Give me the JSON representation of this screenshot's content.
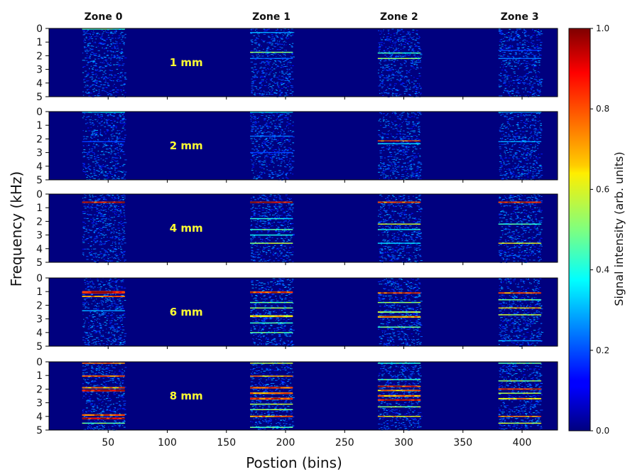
{
  "chart_data": {
    "type": "heatmap",
    "xlabel": "Postion (bins)",
    "ylabel": "Frequency (kHz)",
    "xlim": [
      0,
      430
    ],
    "ylim": [
      0,
      5
    ],
    "y_inverted": true,
    "x_ticks": [
      50,
      100,
      150,
      200,
      250,
      300,
      350,
      400
    ],
    "y_ticks": [
      0,
      1,
      2,
      3,
      4,
      5
    ],
    "zones": [
      {
        "label": "Zone 0",
        "center": 46,
        "range": [
          28,
          64
        ]
      },
      {
        "label": "Zone 1",
        "center": 188,
        "range": [
          170,
          206
        ]
      },
      {
        "label": "Zone 2",
        "center": 296,
        "range": [
          278,
          314
        ]
      },
      {
        "label": "Zone 3",
        "center": 398,
        "range": [
          380,
          416
        ]
      }
    ],
    "colorbar": {
      "label": "Signal intensity (arb. units)",
      "range": [
        0,
        1
      ],
      "ticks": [
        "0.0",
        "0.2",
        "0.4",
        "0.6",
        "0.8",
        "1.0"
      ],
      "colormap": "jet"
    },
    "panels": [
      {
        "label": "1 mm",
        "zones": [
          [
            {
              "f": 0.05,
              "i": 0.45,
              "w": 0.06
            }
          ],
          [
            {
              "f": 1.75,
              "i": 0.55,
              "w": 0.08
            },
            {
              "f": 0.3,
              "i": 0.3,
              "w": 0.05
            },
            {
              "f": 2.2,
              "i": 0.25,
              "w": 0.05
            }
          ],
          [
            {
              "f": 1.8,
              "i": 0.45,
              "w": 0.07
            },
            {
              "f": 2.2,
              "i": 0.55,
              "w": 0.08
            }
          ],
          [
            {
              "f": 2.2,
              "i": 0.25,
              "w": 0.05
            },
            {
              "f": 1.6,
              "i": 0.2,
              "w": 0.05
            }
          ]
        ]
      },
      {
        "label": "2 mm",
        "zones": [
          [
            {
              "f": 0.05,
              "i": 0.35,
              "w": 0.06
            },
            {
              "f": 2.2,
              "i": 0.2,
              "w": 0.05
            }
          ],
          [
            {
              "f": 0.05,
              "i": 0.35,
              "w": 0.06
            },
            {
              "f": 1.8,
              "i": 0.25,
              "w": 0.05
            },
            {
              "f": 3.0,
              "i": 0.2,
              "w": 0.05
            }
          ],
          [
            {
              "f": 2.15,
              "i": 0.85,
              "w": 0.07
            },
            {
              "f": 2.35,
              "i": 0.35,
              "w": 0.05
            }
          ],
          [
            {
              "f": 0.05,
              "i": 0.3,
              "w": 0.06
            },
            {
              "f": 2.2,
              "i": 0.3,
              "w": 0.05
            }
          ]
        ]
      },
      {
        "label": "4 mm",
        "zones": [
          [
            {
              "f": 0.6,
              "i": 0.95,
              "w": 0.1
            }
          ],
          [
            {
              "f": 0.6,
              "i": 0.95,
              "w": 0.1
            },
            {
              "f": 1.8,
              "i": 0.4,
              "w": 0.05
            },
            {
              "f": 2.6,
              "i": 0.5,
              "w": 0.07
            },
            {
              "f": 3.0,
              "i": 0.4,
              "w": 0.05
            },
            {
              "f": 3.6,
              "i": 0.6,
              "w": 0.07
            }
          ],
          [
            {
              "f": 0.6,
              "i": 0.85,
              "w": 0.1
            },
            {
              "f": 2.2,
              "i": 0.6,
              "w": 0.08
            },
            {
              "f": 2.6,
              "i": 0.4,
              "w": 0.05
            },
            {
              "f": 3.6,
              "i": 0.35,
              "w": 0.05
            }
          ],
          [
            {
              "f": 0.6,
              "i": 0.9,
              "w": 0.1
            },
            {
              "f": 2.2,
              "i": 0.45,
              "w": 0.05
            },
            {
              "f": 3.6,
              "i": 0.65,
              "w": 0.07
            }
          ]
        ]
      },
      {
        "label": "6 mm",
        "zones": [
          [
            {
              "f": 1.05,
              "i": 1.0,
              "w": 0.18
            },
            {
              "f": 1.35,
              "i": 0.85,
              "w": 0.1
            },
            {
              "f": 2.4,
              "i": 0.3,
              "w": 0.05
            }
          ],
          [
            {
              "f": 1.05,
              "i": 0.9,
              "w": 0.12
            },
            {
              "f": 1.8,
              "i": 0.5,
              "w": 0.07
            },
            {
              "f": 2.2,
              "i": 0.55,
              "w": 0.07
            },
            {
              "f": 2.8,
              "i": 0.7,
              "w": 0.14
            },
            {
              "f": 3.3,
              "i": 0.45,
              "w": 0.06
            },
            {
              "f": 4.0,
              "i": 0.5,
              "w": 0.07
            }
          ],
          [
            {
              "f": 1.1,
              "i": 0.9,
              "w": 0.1
            },
            {
              "f": 1.8,
              "i": 0.55,
              "w": 0.07
            },
            {
              "f": 2.5,
              "i": 0.6,
              "w": 0.1
            },
            {
              "f": 2.85,
              "i": 0.75,
              "w": 0.12
            },
            {
              "f": 3.6,
              "i": 0.5,
              "w": 0.06
            }
          ],
          [
            {
              "f": 1.1,
              "i": 0.85,
              "w": 0.1
            },
            {
              "f": 1.6,
              "i": 0.5,
              "w": 0.06
            },
            {
              "f": 2.2,
              "i": 0.7,
              "w": 0.08
            },
            {
              "f": 2.7,
              "i": 0.6,
              "w": 0.07
            },
            {
              "f": 4.6,
              "i": 0.3,
              "w": 0.05
            }
          ]
        ]
      },
      {
        "label": "8 mm",
        "zones": [
          [
            {
              "f": 0.1,
              "i": 0.85,
              "w": 0.08
            },
            {
              "f": 1.05,
              "i": 0.85,
              "w": 0.1
            },
            {
              "f": 1.9,
              "i": 0.8,
              "w": 0.1
            },
            {
              "f": 2.1,
              "i": 1.0,
              "w": 0.14
            },
            {
              "f": 3.9,
              "i": 0.9,
              "w": 0.12
            },
            {
              "f": 4.15,
              "i": 1.0,
              "w": 0.12
            },
            {
              "f": 4.5,
              "i": 0.5,
              "w": 0.05
            }
          ],
          [
            {
              "f": 0.1,
              "i": 0.6,
              "w": 0.08
            },
            {
              "f": 1.05,
              "i": 0.75,
              "w": 0.08
            },
            {
              "f": 1.9,
              "i": 0.9,
              "w": 0.12
            },
            {
              "f": 2.3,
              "i": 0.8,
              "w": 0.12
            },
            {
              "f": 2.7,
              "i": 0.9,
              "w": 0.14
            },
            {
              "f": 3.1,
              "i": 0.6,
              "w": 0.08
            },
            {
              "f": 3.5,
              "i": 0.55,
              "w": 0.07
            },
            {
              "f": 4.0,
              "i": 0.8,
              "w": 0.1
            },
            {
              "f": 4.8,
              "i": 0.5,
              "w": 0.06
            }
          ],
          [
            {
              "f": 0.1,
              "i": 0.45,
              "w": 0.06
            },
            {
              "f": 1.3,
              "i": 0.5,
              "w": 0.07
            },
            {
              "f": 1.8,
              "i": 0.9,
              "w": 0.1
            },
            {
              "f": 2.1,
              "i": 0.75,
              "w": 0.1
            },
            {
              "f": 2.5,
              "i": 0.8,
              "w": 0.12
            },
            {
              "f": 2.8,
              "i": 1.0,
              "w": 0.12
            },
            {
              "f": 3.3,
              "i": 0.55,
              "w": 0.07
            },
            {
              "f": 4.0,
              "i": 0.7,
              "w": 0.08
            }
          ],
          [
            {
              "f": 0.1,
              "i": 0.5,
              "w": 0.06
            },
            {
              "f": 1.4,
              "i": 0.55,
              "w": 0.07
            },
            {
              "f": 2.0,
              "i": 0.9,
              "w": 0.1
            },
            {
              "f": 2.3,
              "i": 0.6,
              "w": 0.08
            },
            {
              "f": 2.7,
              "i": 0.75,
              "w": 0.1
            },
            {
              "f": 4.0,
              "i": 0.8,
              "w": 0.07
            },
            {
              "f": 4.5,
              "i": 0.6,
              "w": 0.06
            }
          ]
        ]
      }
    ]
  }
}
